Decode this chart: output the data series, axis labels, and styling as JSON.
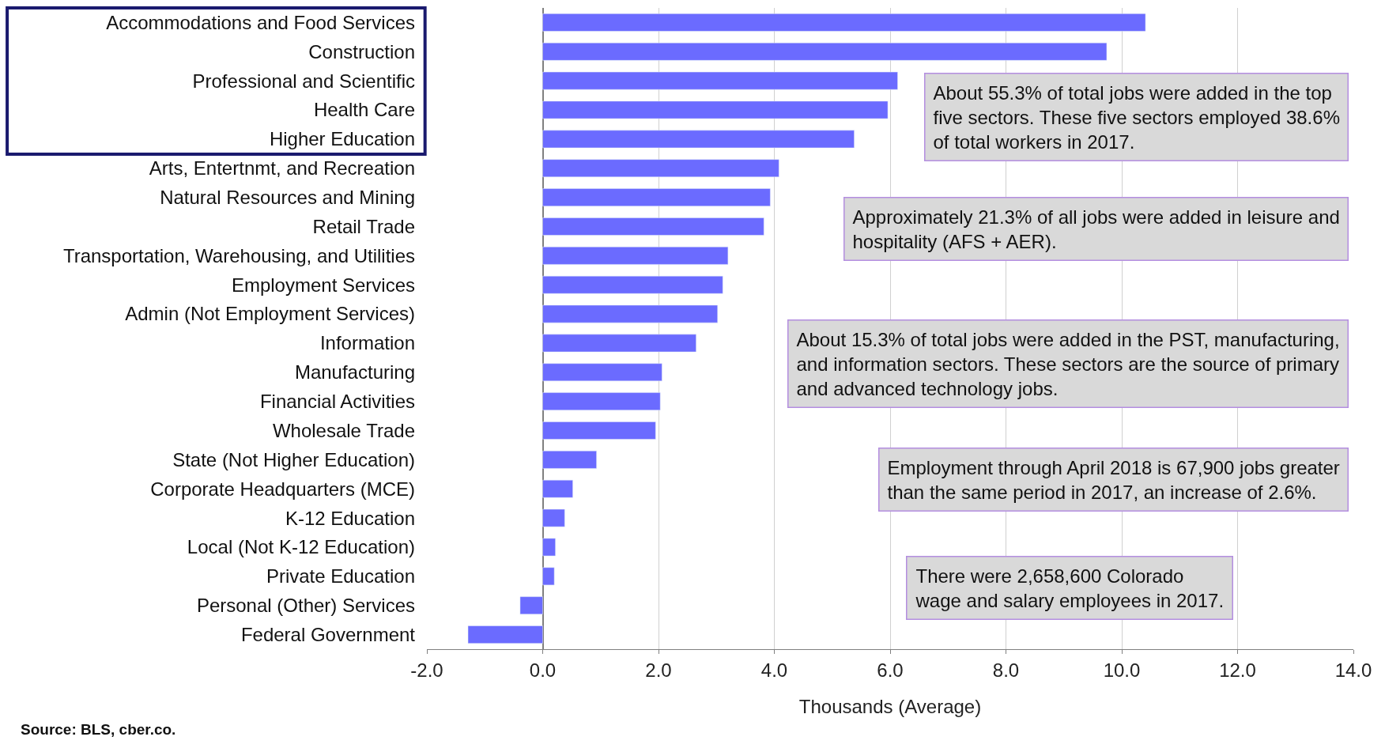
{
  "chart_data": {
    "type": "bar",
    "orientation": "horizontal",
    "categories": [
      "Accommodations and Food Services",
      "Construction",
      "Professional and Scientific",
      "Health Care",
      "Higher Education",
      "Arts, Entertnmt, and Recreation",
      "Natural Resources and Mining",
      "Retail Trade",
      "Transportation, Warehousing, and Utilities",
      "Employment Services",
      "Admin (Not Employment Services)",
      "Information",
      "Manufacturing",
      "Financial Activities",
      "Wholesale Trade",
      "State (Not Higher Education)",
      "Corporate Headquarters (MCE)",
      "K-12 Education",
      "Local (Not K-12 Education)",
      "Private Education",
      "Personal (Other) Services",
      "Federal Government"
    ],
    "values": [
      10.41,
      9.74,
      6.13,
      5.96,
      5.38,
      4.08,
      3.93,
      3.82,
      3.2,
      3.11,
      3.02,
      2.65,
      2.06,
      2.03,
      1.95,
      0.93,
      0.52,
      0.38,
      0.22,
      0.2,
      -0.39,
      -1.29
    ],
    "color": "#6b6bff",
    "xlim": [
      -2,
      14
    ],
    "xticks": [
      {
        "value": -2,
        "label": "-2.0"
      },
      {
        "value": 0,
        "label": "0.0"
      },
      {
        "value": 2,
        "label": "2.0"
      },
      {
        "value": 4,
        "label": "4.0"
      },
      {
        "value": 6,
        "label": "6.0"
      },
      {
        "value": 8,
        "label": "8.0"
      },
      {
        "value": 10,
        "label": "10.0"
      },
      {
        "value": 12,
        "label": "12.0"
      },
      {
        "value": 14,
        "label": "14.0"
      }
    ],
    "xlabel": "Thousands (Average)",
    "grid": "x",
    "annotations": [
      "About 55.3% of total jobs were added in the top\nfive sectors. These five sectors employed 38.6%\nof total workers in 2017.",
      "Approximately 21.3% of all jobs were added in leisure and\nhospitality (AFS + AER).",
      "About 15.3% of total jobs were added in the PST, manufacturing,\nand information sectors. These sectors are the source of primary\nand advanced technology jobs.",
      "Employment through April 2018 is 67,900 jobs greater\nthan the same period in 2017, an increase of 2.6%.",
      "There were 2,658,600 Colorado\nwage and salary employees in 2017.",
      "Source: BLS, cber.co."
    ]
  }
}
